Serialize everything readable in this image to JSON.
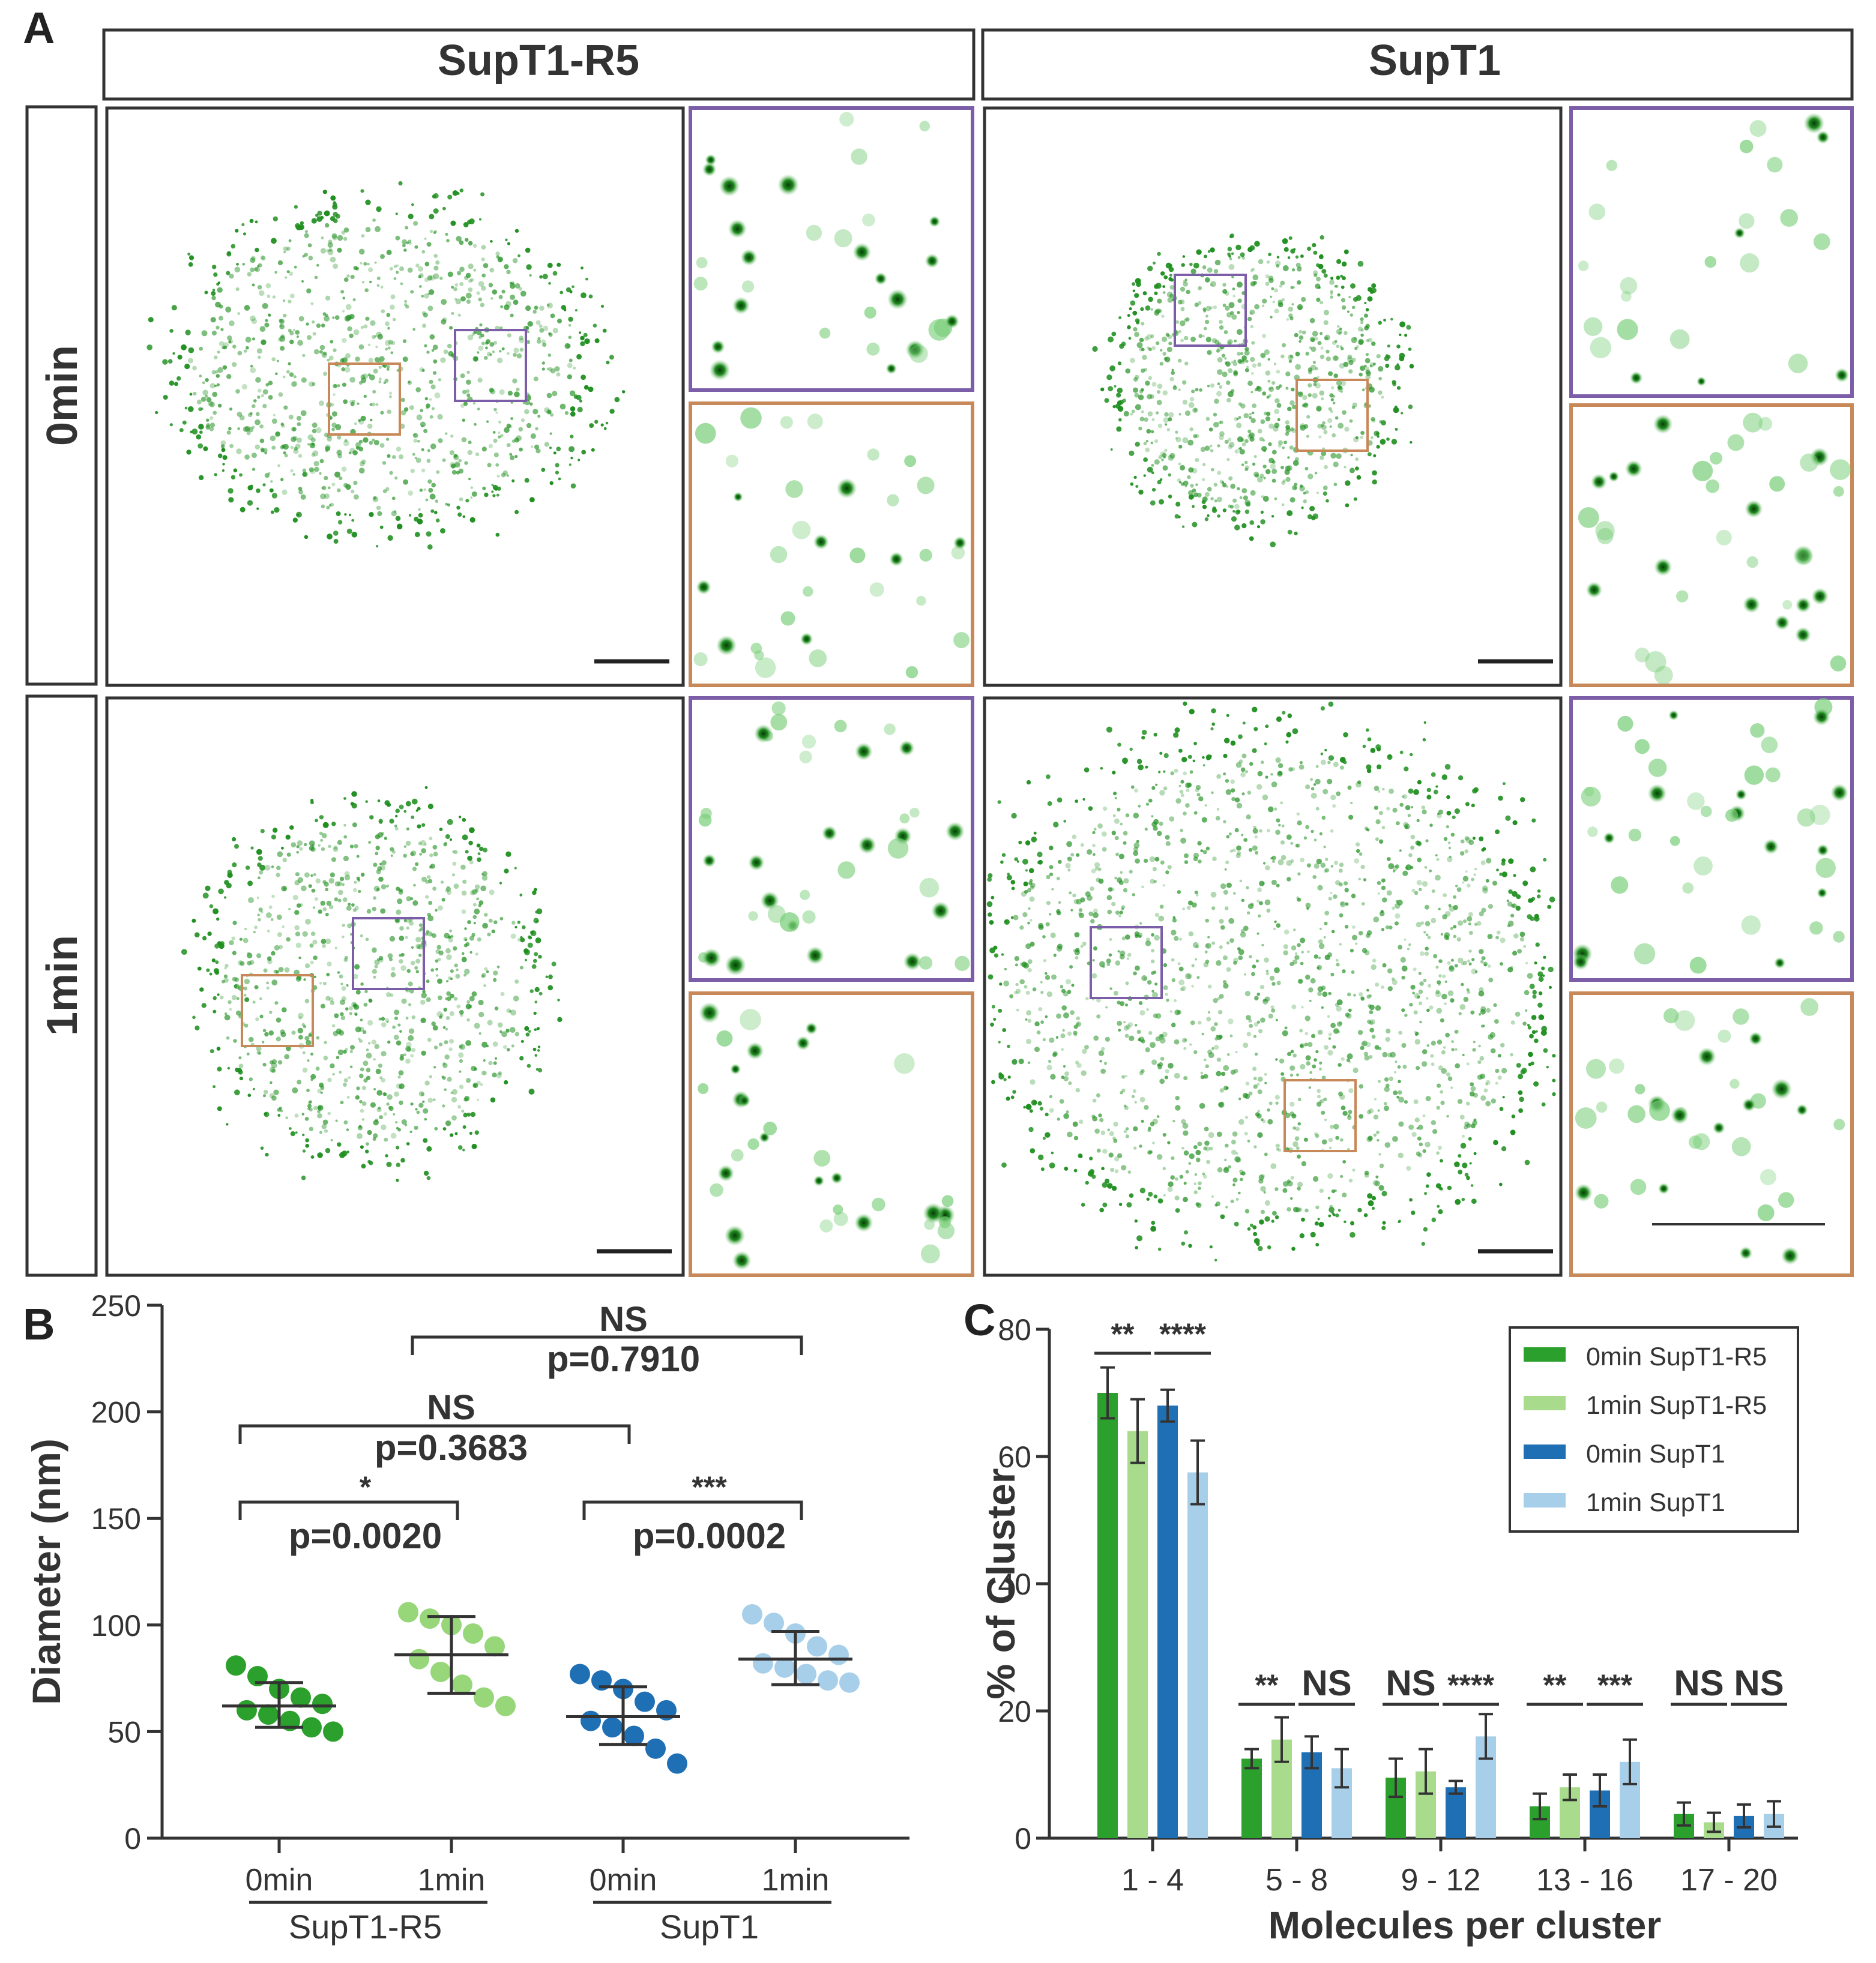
{
  "panel_letters": {
    "a": "A",
    "b": "B",
    "c": "C"
  },
  "panel_a": {
    "column_headers": [
      "SupT1-R5",
      "SupT1"
    ],
    "row_headers": [
      "0min",
      "1min"
    ],
    "colors": {
      "signal": "#1f8f1f",
      "roi_purple": "#7b5ea7",
      "roi_orange": "#c8895a"
    }
  },
  "chart_data": [
    {
      "type": "scatter",
      "panel": "B",
      "ylabel": "Diameter (nm)",
      "ylim": [
        0,
        250
      ],
      "yticks": [
        0,
        50,
        100,
        150,
        200,
        250
      ],
      "groups": [
        {
          "x_label": "0min",
          "cell_line": "SupT1-R5",
          "color": "#2ca02c",
          "mean": 62,
          "sd_low": 52,
          "sd_high": 73,
          "points": [
            81,
            76,
            70,
            66,
            63,
            60,
            58,
            55,
            52,
            50
          ]
        },
        {
          "x_label": "1min",
          "cell_line": "SupT1-R5",
          "color": "#98d67a",
          "mean": 86,
          "sd_low": 68,
          "sd_high": 104,
          "points": [
            106,
            103,
            100,
            96,
            90,
            84,
            78,
            72,
            66,
            62
          ]
        },
        {
          "x_label": "0min",
          "cell_line": "SupT1",
          "color": "#1f6fb5",
          "mean": 57,
          "sd_low": 44,
          "sd_high": 71,
          "points": [
            77,
            74,
            70,
            64,
            60,
            55,
            52,
            48,
            42,
            35
          ]
        },
        {
          "x_label": "1min",
          "cell_line": "SupT1",
          "color": "#a8cfea",
          "mean": 84,
          "sd_low": 72,
          "sd_high": 97,
          "points": [
            105,
            101,
            96,
            90,
            86,
            82,
            80,
            77,
            74,
            73
          ]
        }
      ],
      "group_labels": [
        "SupT1-R5",
        "SupT1"
      ],
      "comparisons": [
        {
          "from": 0,
          "to": 1,
          "sig": "*",
          "p": "p=0.0020"
        },
        {
          "from": 2,
          "to": 3,
          "sig": "***",
          "p": "p=0.0002"
        },
        {
          "from": 0,
          "to": 2,
          "sig": "NS",
          "p": "p=0.3683"
        },
        {
          "from": 1,
          "to": 3,
          "sig": "NS",
          "p": "p=0.7910"
        }
      ]
    },
    {
      "type": "bar",
      "panel": "C",
      "xlabel": "Molecules per cluster",
      "ylabel": "% of Cluster",
      "ylim": [
        0,
        80
      ],
      "yticks": [
        0,
        20,
        40,
        60,
        80
      ],
      "categories": [
        "1 - 4",
        "5 - 8",
        "9 - 12",
        "13 - 16",
        "17 - 20"
      ],
      "series": [
        {
          "name": "0min SupT1-R5",
          "color": "#2ca02c",
          "values": [
            70,
            12.5,
            9.5,
            5,
            3.8
          ],
          "errors": [
            4,
            1.5,
            3,
            2,
            1.8
          ]
        },
        {
          "name": "1min SupT1-R5",
          "color": "#a8dc8c",
          "values": [
            64,
            15.5,
            10.5,
            8,
            2.5
          ],
          "errors": [
            5,
            3.5,
            3.5,
            2,
            1.5
          ]
        },
        {
          "name": "0min SupT1",
          "color": "#1f6fb5",
          "values": [
            68,
            13.5,
            8,
            7.5,
            3.5
          ],
          "errors": [
            2.5,
            2.5,
            1,
            2.5,
            1.8
          ]
        },
        {
          "name": "1min SupT1",
          "color": "#a8cfea",
          "values": [
            57.5,
            11,
            16,
            12,
            3.8
          ],
          "errors": [
            5,
            3,
            3.5,
            3.5,
            2
          ]
        }
      ],
      "significance": [
        [
          "**",
          "****"
        ],
        [
          "**",
          "NS"
        ],
        [
          "NS",
          "****"
        ],
        [
          "**",
          "***"
        ],
        [
          "NS",
          "NS"
        ]
      ]
    }
  ]
}
